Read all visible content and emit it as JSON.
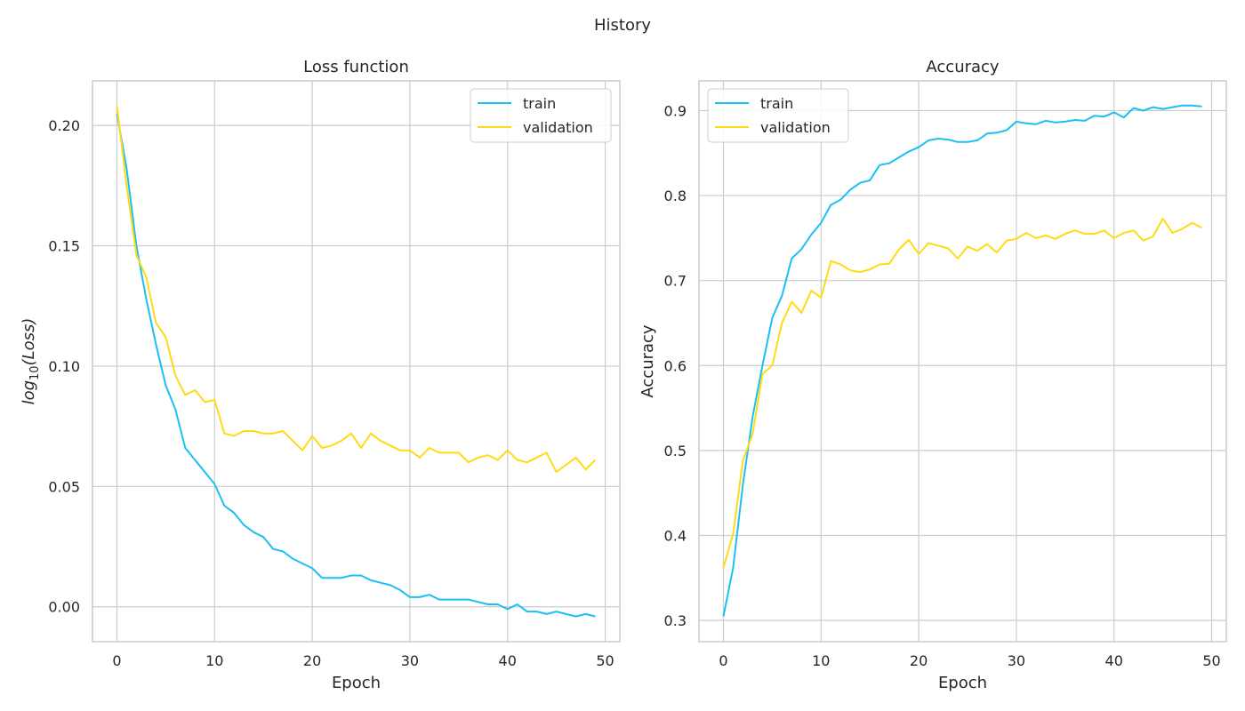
{
  "figure": {
    "suptitle": "History"
  },
  "colors": {
    "train": "#1ac0f5",
    "validation": "#ffdb14",
    "grid": "#cccccc",
    "spine": "#cccccc",
    "text": "#262626"
  },
  "chart_data": [
    {
      "type": "line",
      "title": "Loss function",
      "xlabel": "Epoch",
      "ylabel_base": "log",
      "ylabel_sub": "10",
      "ylabel_arg": "(Loss)",
      "xlim": [
        -2.5,
        51.5
      ],
      "ylim": [
        -0.0145,
        0.2185
      ],
      "xticks": [
        0,
        10,
        20,
        30,
        40,
        50
      ],
      "xtick_labels": [
        "0",
        "10",
        "20",
        "30",
        "40",
        "50"
      ],
      "yticks": [
        0.0,
        0.05,
        0.1,
        0.15,
        0.2
      ],
      "ytick_labels": [
        "0.00",
        "0.05",
        "0.10",
        "0.15",
        "0.20"
      ],
      "grid": true,
      "legend_position": "top-right",
      "x": [
        0,
        1,
        2,
        3,
        4,
        5,
        6,
        7,
        8,
        9,
        10,
        11,
        12,
        13,
        14,
        15,
        16,
        17,
        18,
        19,
        20,
        21,
        22,
        23,
        24,
        25,
        26,
        27,
        28,
        29,
        30,
        31,
        32,
        33,
        34,
        35,
        36,
        37,
        38,
        39,
        40,
        41,
        42,
        43,
        44,
        45,
        46,
        47,
        48,
        49
      ],
      "series": [
        {
          "name": "train",
          "values": [
            0.205,
            0.182,
            0.15,
            0.128,
            0.109,
            0.092,
            0.082,
            0.066,
            0.061,
            0.056,
            0.051,
            0.042,
            0.039,
            0.034,
            0.031,
            0.029,
            0.024,
            0.023,
            0.02,
            0.018,
            0.016,
            0.012,
            0.012,
            0.012,
            0.013,
            0.013,
            0.011,
            0.01,
            0.009,
            0.007,
            0.004,
            0.004,
            0.005,
            0.003,
            0.003,
            0.003,
            0.003,
            0.002,
            0.001,
            0.001,
            -0.001,
            0.001,
            -0.002,
            -0.002,
            -0.003,
            -0.002,
            -0.003,
            -0.004,
            -0.003,
            -0.004
          ]
        },
        {
          "name": "validation",
          "values": [
            0.208,
            0.175,
            0.146,
            0.137,
            0.118,
            0.112,
            0.096,
            0.088,
            0.09,
            0.085,
            0.086,
            0.072,
            0.071,
            0.073,
            0.073,
            0.072,
            0.072,
            0.073,
            0.069,
            0.065,
            0.071,
            0.066,
            0.067,
            0.069,
            0.072,
            0.066,
            0.072,
            0.069,
            0.067,
            0.065,
            0.065,
            0.062,
            0.066,
            0.064,
            0.064,
            0.064,
            0.06,
            0.062,
            0.063,
            0.061,
            0.065,
            0.061,
            0.06,
            0.062,
            0.064,
            0.056,
            0.059,
            0.062,
            0.057,
            0.061
          ]
        }
      ]
    },
    {
      "type": "line",
      "title": "Accuracy",
      "xlabel": "Epoch",
      "ylabel": "Accuracy",
      "xlim": [
        -2.5,
        51.5
      ],
      "ylim": [
        0.275,
        0.935
      ],
      "xticks": [
        0,
        10,
        20,
        30,
        40,
        50
      ],
      "xtick_labels": [
        "0",
        "10",
        "20",
        "30",
        "40",
        "50"
      ],
      "yticks": [
        0.3,
        0.4,
        0.5,
        0.6,
        0.7,
        0.8,
        0.9
      ],
      "ytick_labels": [
        "0.3",
        "0.4",
        "0.5",
        "0.6",
        "0.7",
        "0.8",
        "0.9"
      ],
      "grid": true,
      "legend_position": "top-left",
      "x": [
        0,
        1,
        2,
        3,
        4,
        5,
        6,
        7,
        8,
        9,
        10,
        11,
        12,
        13,
        14,
        15,
        16,
        17,
        18,
        19,
        20,
        21,
        22,
        23,
        24,
        25,
        26,
        27,
        28,
        29,
        30,
        31,
        32,
        33,
        34,
        35,
        36,
        37,
        38,
        39,
        40,
        41,
        42,
        43,
        44,
        45,
        46,
        47,
        48,
        49
      ],
      "series": [
        {
          "name": "train",
          "values": [
            0.305,
            0.362,
            0.46,
            0.54,
            0.6,
            0.656,
            0.682,
            0.726,
            0.737,
            0.754,
            0.768,
            0.789,
            0.795,
            0.807,
            0.815,
            0.818,
            0.836,
            0.838,
            0.845,
            0.852,
            0.857,
            0.865,
            0.867,
            0.866,
            0.863,
            0.863,
            0.865,
            0.873,
            0.874,
            0.877,
            0.887,
            0.885,
            0.884,
            0.888,
            0.886,
            0.887,
            0.889,
            0.888,
            0.894,
            0.893,
            0.898,
            0.892,
            0.903,
            0.9,
            0.904,
            0.902,
            0.904,
            0.906,
            0.906,
            0.905
          ]
        },
        {
          "name": "validation",
          "values": [
            0.362,
            0.402,
            0.488,
            0.52,
            0.59,
            0.6,
            0.65,
            0.675,
            0.662,
            0.688,
            0.68,
            0.723,
            0.719,
            0.712,
            0.71,
            0.713,
            0.719,
            0.72,
            0.737,
            0.748,
            0.731,
            0.744,
            0.741,
            0.738,
            0.726,
            0.74,
            0.735,
            0.743,
            0.733,
            0.747,
            0.749,
            0.756,
            0.75,
            0.753,
            0.749,
            0.755,
            0.759,
            0.755,
            0.755,
            0.759,
            0.75,
            0.756,
            0.759,
            0.747,
            0.752,
            0.773,
            0.756,
            0.761,
            0.768,
            0.762
          ]
        }
      ]
    }
  ]
}
